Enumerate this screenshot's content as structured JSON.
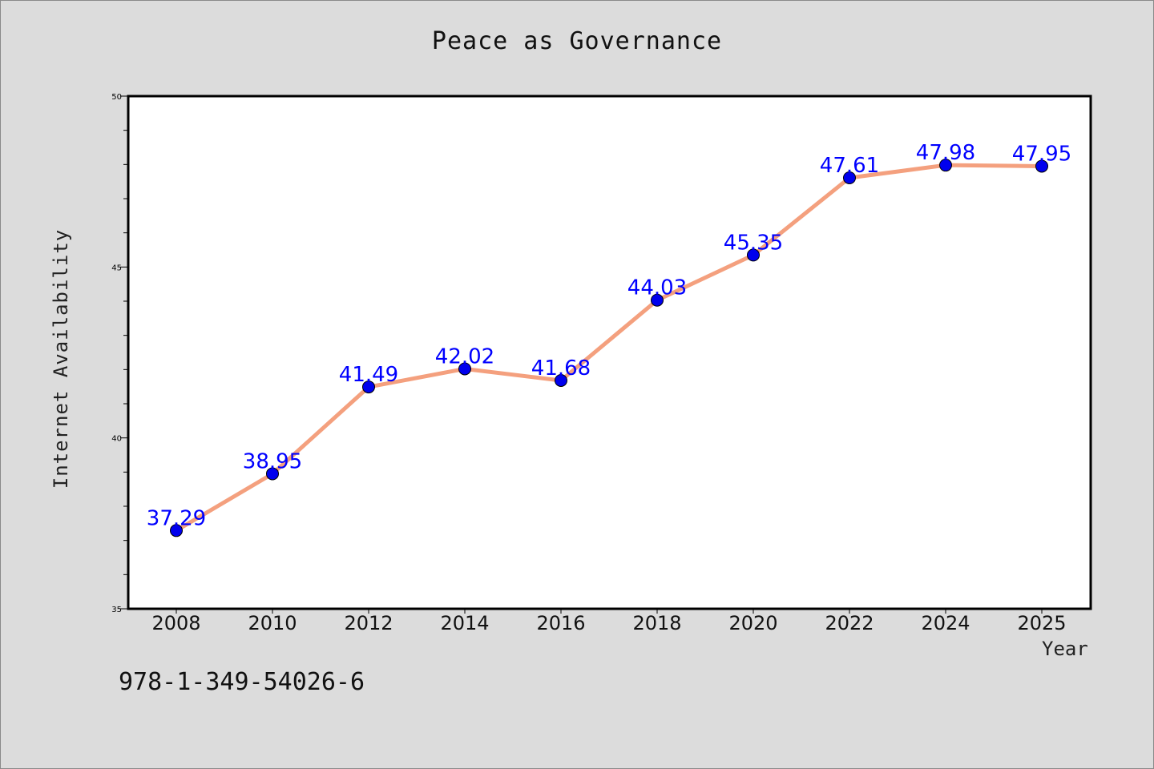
{
  "chart_data": {
    "type": "line",
    "title": "Peace as Governance",
    "xlabel": "Year",
    "ylabel": "Internet Availability",
    "categories": [
      "2008",
      "2010",
      "2012",
      "2014",
      "2016",
      "2018",
      "2020",
      "2022",
      "2024",
      "2025"
    ],
    "series": [
      {
        "values": [
          37.29,
          38.95,
          41.49,
          42.02,
          41.68,
          44.03,
          45.35,
          47.61,
          47.98,
          47.95
        ],
        "data_labels": [
          "37.29",
          "38.95",
          "41.49",
          "42.02",
          "41.68",
          "44.03",
          "45.35",
          "47.61",
          "47.98",
          "47.95"
        ],
        "line_color": "#f4a07e",
        "marker_color": "#0000ee"
      }
    ],
    "ylim": [
      35,
      50
    ],
    "yticks": [
      35,
      40,
      45,
      50
    ],
    "grid": false,
    "label_color": "#0000ff"
  },
  "footer": {
    "isbn": "978-1-349-54026-6"
  },
  "colors": {
    "background": "#dcdcdc",
    "plot_area": "#ffffff"
  }
}
